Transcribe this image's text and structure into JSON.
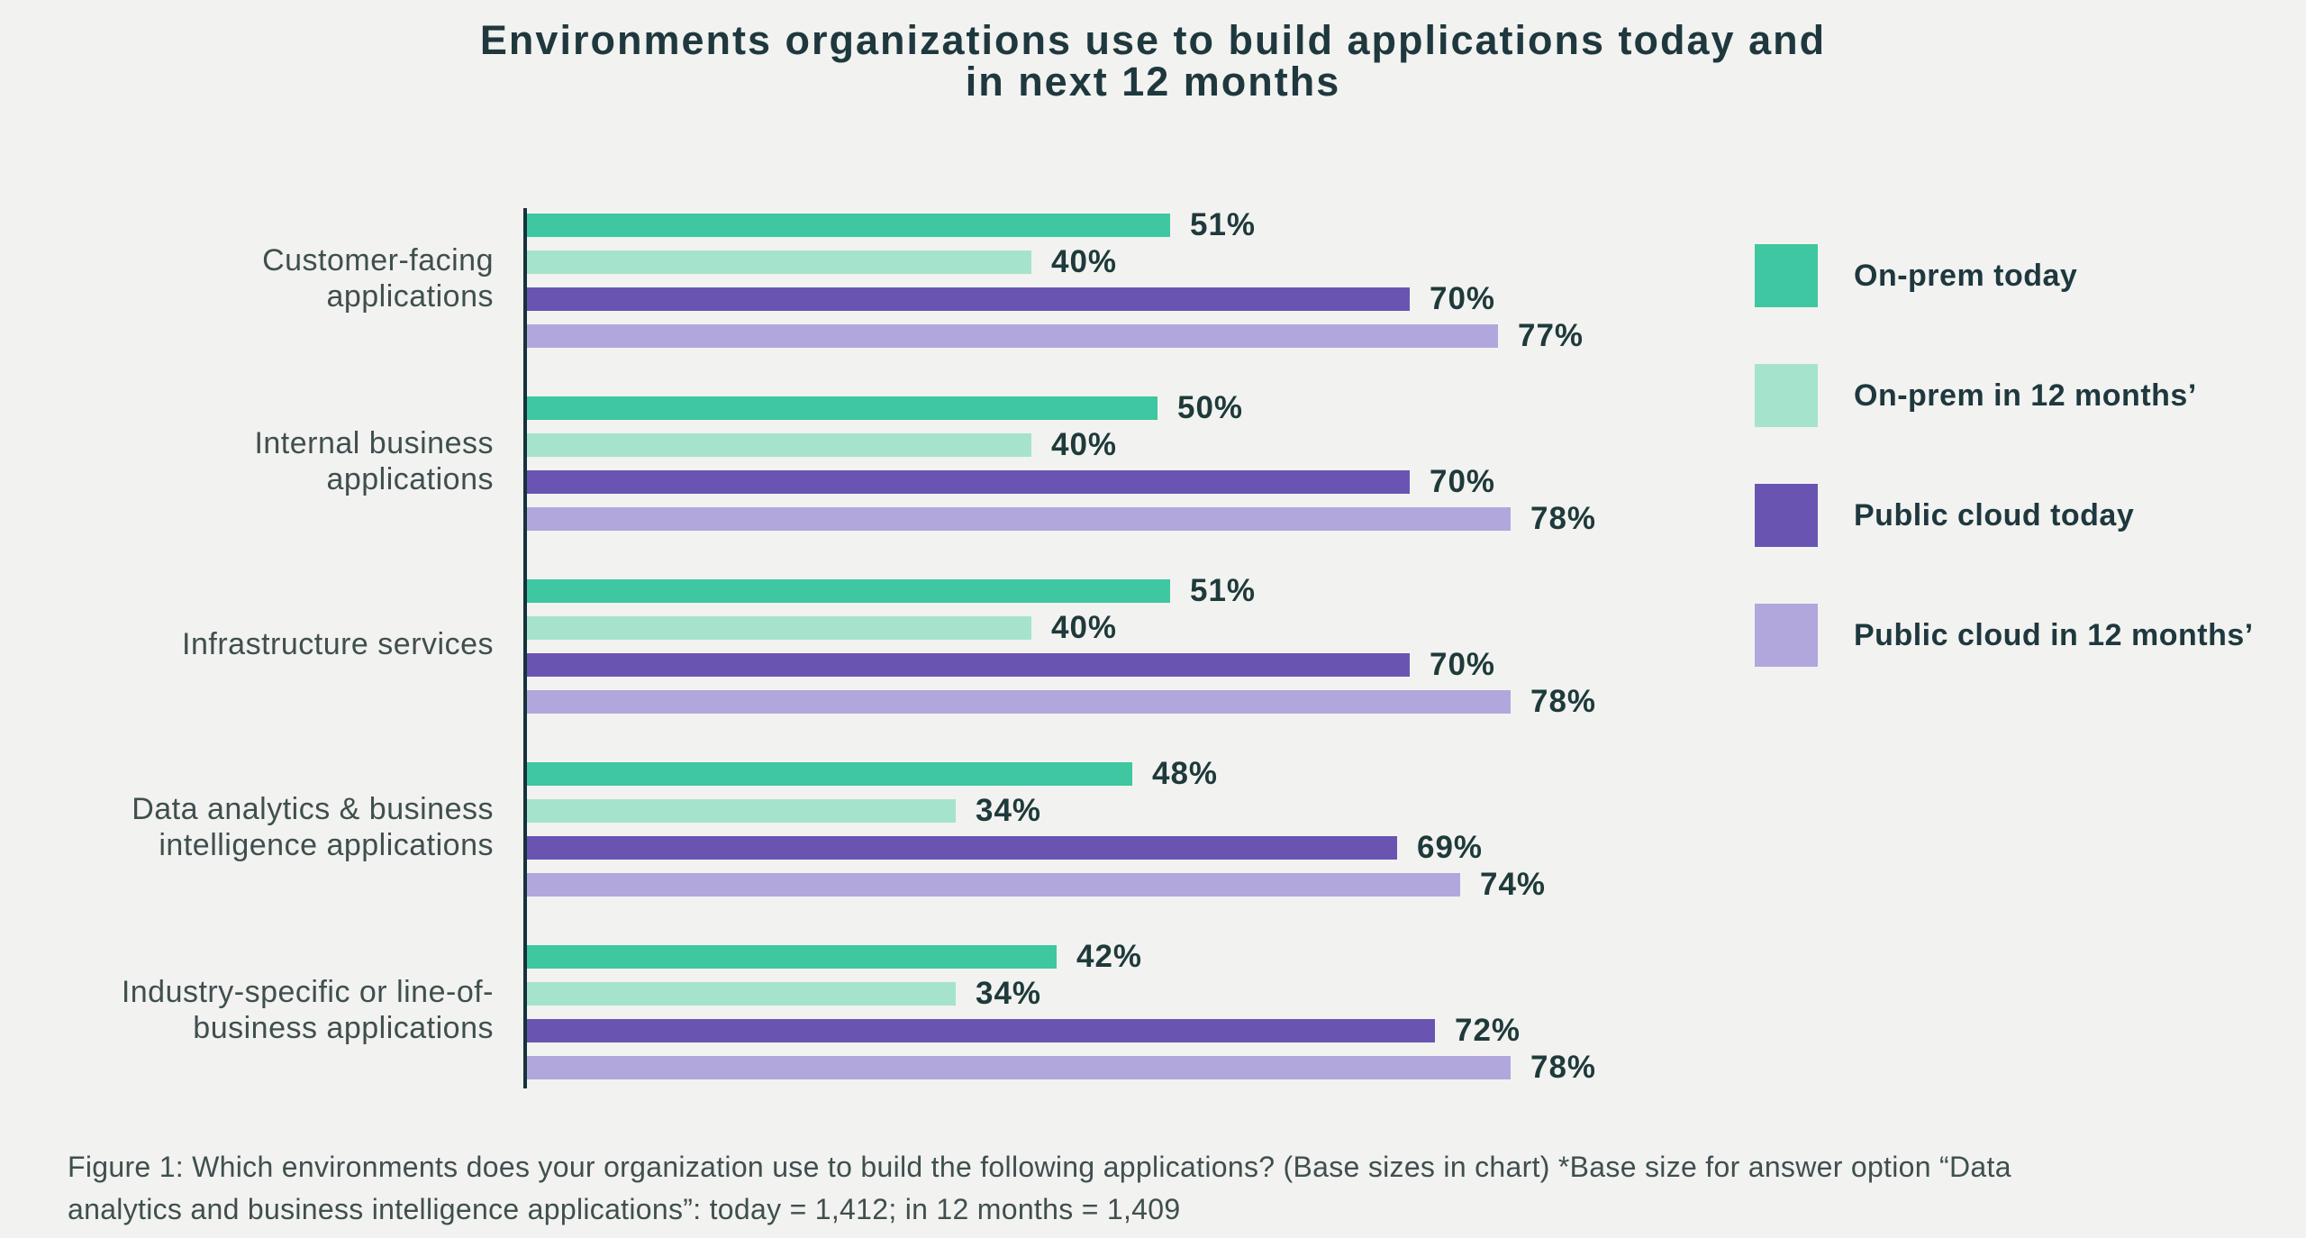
{
  "page": {
    "background": "#F2F2F0",
    "title_text_color": "#1E383E",
    "body_text_color": "#3F4F4E",
    "axis_color": "#16323C"
  },
  "title": {
    "line1": "Environments organizations use to build applications today and",
    "line2": "in next 12 months"
  },
  "chart_data": {
    "type": "bar",
    "orientation": "horizontal",
    "title": "Environments organizations use to build applications today and in next 12 months",
    "unit": "percent",
    "value_suffix": "%",
    "xlim": [
      0,
      100
    ],
    "grid": false,
    "legend_position": "right",
    "categories": [
      "Customer-facing\napplications",
      "Internal business\napplications",
      "Infrastructure services",
      "Data analytics & business\nintelligence applications",
      "Industry-specific or line-of-\nbusiness applications"
    ],
    "series": [
      {
        "name": "On-prem today",
        "color": "#3EC7A0",
        "values": [
          51,
          50,
          51,
          48,
          42
        ]
      },
      {
        "name": "On-prem in 12 months’",
        "color": "#A6E3CD",
        "values": [
          40,
          40,
          40,
          34,
          34
        ]
      },
      {
        "name": "Public cloud today",
        "color": "#6A54B2",
        "values": [
          70,
          70,
          70,
          69,
          72
        ]
      },
      {
        "name": "Public cloud in 12 months’",
        "color": "#B2A7DC",
        "values": [
          77,
          78,
          78,
          74,
          78
        ]
      }
    ]
  },
  "caption": {
    "line1": "Figure 1: Which environments does your organization use to build the following applications? (Base sizes in chart) *Base size for answer option “Data",
    "line2": "analytics and business intelligence applications”: today = 1,412; in 12 months = 1,409"
  }
}
